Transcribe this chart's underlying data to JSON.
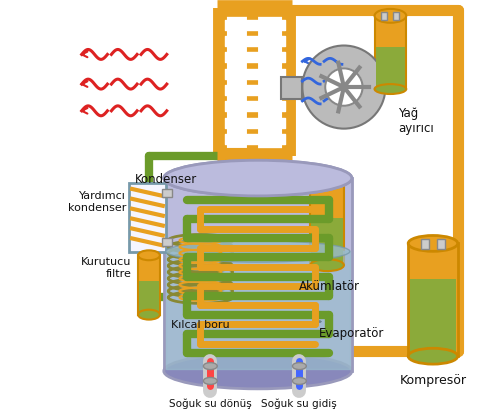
{
  "background_color": "#ffffff",
  "labels": {
    "kondenser": "Kondenser",
    "yag_ayirici": "Yağ\nayırıcı",
    "yardimci_kondenser": "Yardımcı\nkondenser",
    "kurutucu_filtre": "Kurutucu\nfiltre",
    "kilcal_boru": "Kılcal boru",
    "akumulator": "Akümlatör",
    "evaporator": "Evaporatör",
    "kompressor": "Kompresör",
    "soguk_su_donus": "Soğuk su dönüş",
    "soguk_su_gidis": "Soğuk su gidiş"
  },
  "colors": {
    "orange_pipe": "#E8A020",
    "orange_pipe_dark": "#CC8800",
    "green_pipe": "#6B9B2A",
    "purple_tank": "#BBBBDD",
    "purple_wall": "#9999BB",
    "red_wave": "#DD2222",
    "blue_wave": "#3366DD",
    "gray_fan": "#999999",
    "gray_fan_dark": "#666666",
    "tank_orange_top": "#E8A020",
    "tank_green_bot": "#8BAA3A",
    "water_blue": "#99BBCC",
    "coil_orange": "#E8A020",
    "coil_green": "#6B9B2A",
    "white": "#FFFFFF",
    "text_color": "#111111",
    "yardimci_bg": "#F5F5FF",
    "yardimci_border": "#7799AA",
    "yardimci_stripe": "#E8A020",
    "kurutucu_top": "#E8A020",
    "kurutucu_bot": "#8BAA3A",
    "mesh_bg": "#D4C870",
    "mesh_line": "#888833",
    "pipe_connector": "#AAAAAA"
  }
}
